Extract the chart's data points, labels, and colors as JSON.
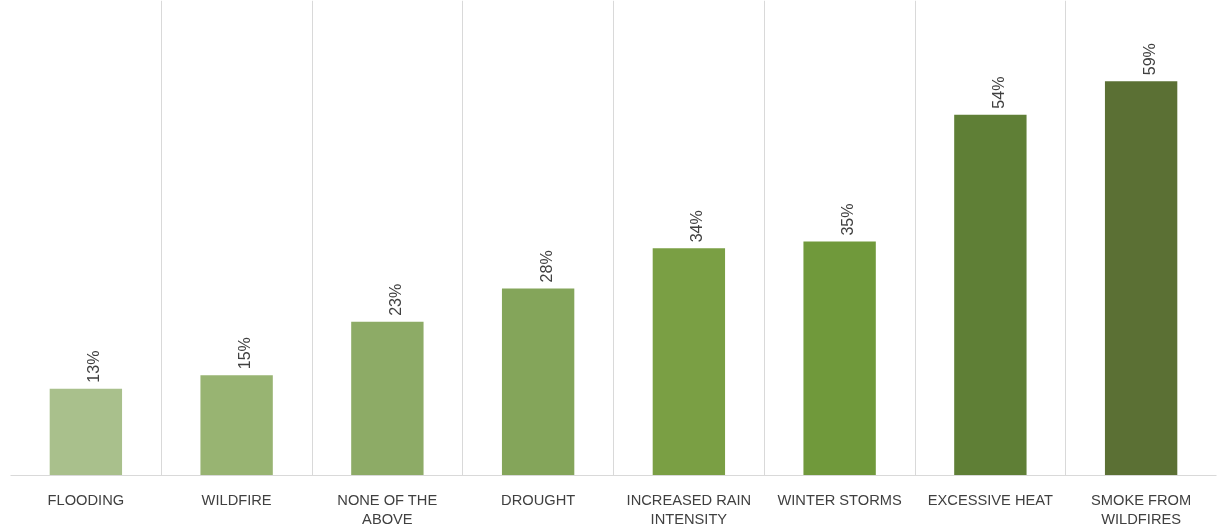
{
  "chart_data": {
    "type": "bar",
    "categories": [
      "FLOODING",
      "WILDFIRE",
      "NONE OF THE ABOVE",
      "DROUGHT",
      "INCREASED RAIN INTENSITY",
      "WINTER STORMS",
      "EXCESSIVE HEAT",
      "SMOKE FROM WILDFIRES"
    ],
    "values": [
      13,
      15,
      23,
      28,
      34,
      35,
      54,
      59
    ],
    "colors": [
      "#a9c08c",
      "#98b472",
      "#8dab66",
      "#84a55a",
      "#7a9f44",
      "#70993b",
      "#5f7f36",
      "#5b7034"
    ],
    "value_labels": [
      "13%",
      "15%",
      "23%",
      "28%",
      "34%",
      "35%",
      "54%",
      "59%"
    ],
    "grid": "x",
    "tick_labels": "x"
  }
}
